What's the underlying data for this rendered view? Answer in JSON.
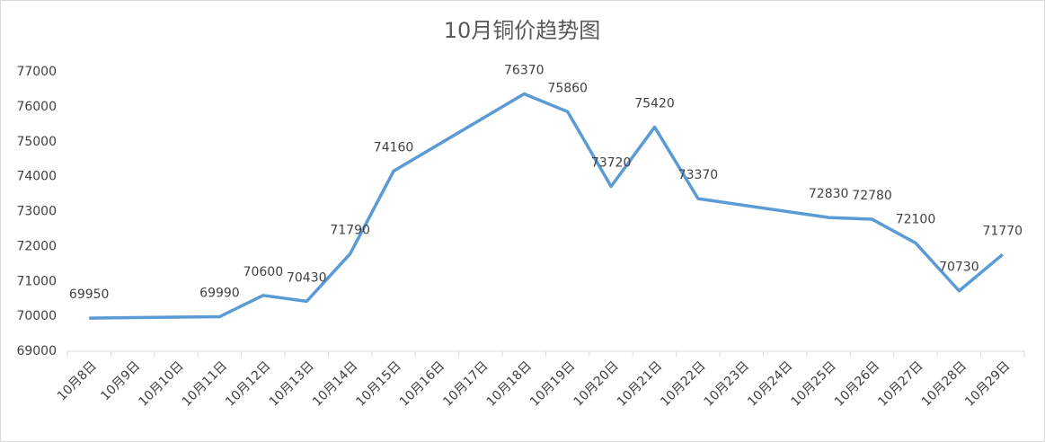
{
  "chart_data": {
    "type": "line",
    "title": "10月铜价趋势图",
    "categories": [
      "10月8日",
      "10月9日",
      "10月10日",
      "10月11日",
      "10月12日",
      "10月13日",
      "10月14日",
      "10月15日",
      "10月16日",
      "10月17日",
      "10月18日",
      "10月19日",
      "10月20日",
      "10月21日",
      "10月22日",
      "10月23日",
      "10月24日",
      "10月25日",
      "10月26日",
      "10月27日",
      "10月28日",
      "10月29日"
    ],
    "x": [
      "10月8日",
      "10月11日",
      "10月12日",
      "10月13日",
      "10月14日",
      "10月15日",
      "10月18日",
      "10月19日",
      "10月20日",
      "10月21日",
      "10月22日",
      "10月25日",
      "10月26日",
      "10月27日",
      "10月28日",
      "10月29日"
    ],
    "values": [
      69950,
      69990,
      70600,
      70430,
      71790,
      74160,
      76370,
      75860,
      73720,
      75420,
      73370,
      72830,
      72780,
      72100,
      70730,
      71770
    ],
    "color": "#5b9bd5",
    "ylim": [
      69000,
      77000
    ],
    "yticks": [
      69000,
      70000,
      71000,
      72000,
      73000,
      74000,
      75000,
      76000,
      77000
    ]
  }
}
